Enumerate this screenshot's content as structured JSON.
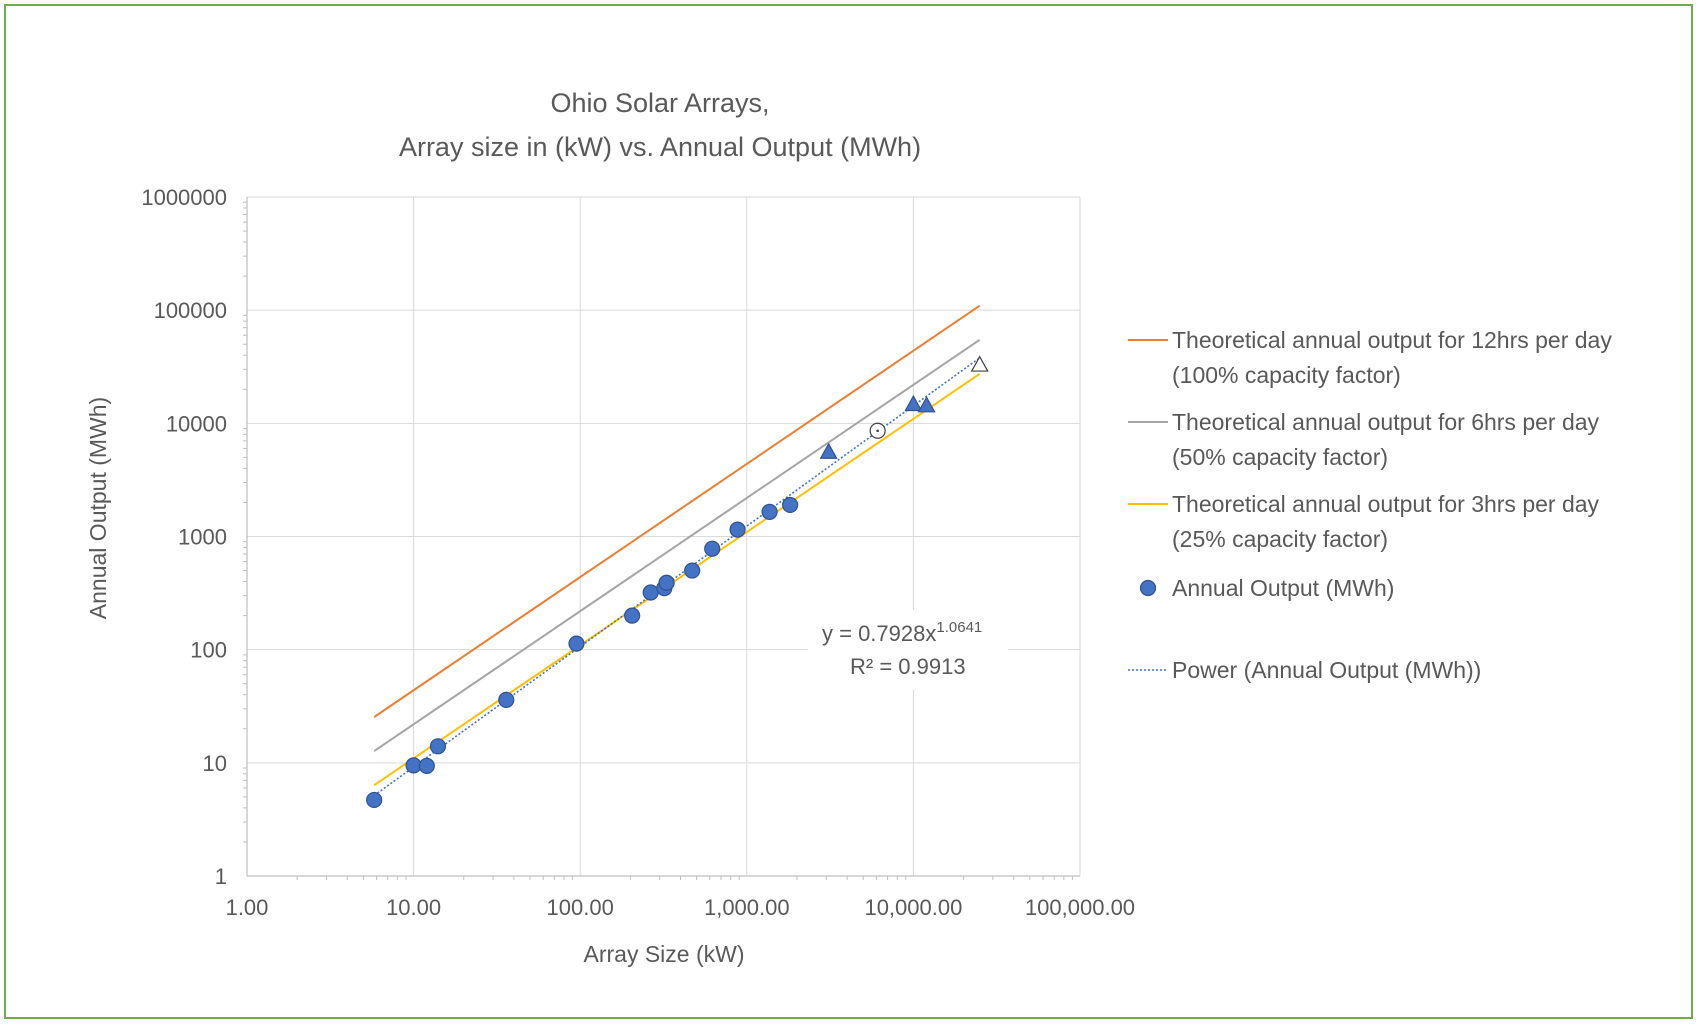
{
  "chart_data": {
    "type": "scatter",
    "title_line1": "Ohio Solar Arrays,",
    "title_line2": "Array size in (kW) vs. Annual Output  (MWh)",
    "xlabel": "Array Size (kW)",
    "ylabel": "Annual Output (MWh)",
    "x_scale": "log",
    "y_scale": "log",
    "xlim": [
      1,
      100000
    ],
    "ylim": [
      1,
      1000000
    ],
    "x_tick_values": [
      1,
      10,
      100,
      1000,
      10000,
      100000
    ],
    "x_tick_labels": [
      "1.00",
      "10.00",
      "100.00",
      "1,000.00",
      "10,000.00",
      "100,000.00"
    ],
    "y_tick_values": [
      1,
      10,
      100,
      1000,
      10000,
      100000,
      1000000
    ],
    "y_tick_labels": [
      "1",
      "10",
      "100",
      "1000",
      "10000",
      "100000",
      "1000000"
    ],
    "grid": true,
    "legend_position": "right",
    "legend": {
      "line12_a": "Theoretical annual output for 12hrs per day",
      "line12_b": "(100% capacity factor)",
      "line6_a": "Theoretical annual output for 6hrs per day",
      "line6_b": "(50% capacity factor)",
      "line3_a": "Theoretical annual output for 3hrs per day",
      "line3_b": "(25% capacity factor)",
      "points": "Annual Output  (MWh)",
      "trend": "Power (Annual Output  (MWh))"
    },
    "annotation": {
      "eq_prefix": "y = 0.7928x",
      "eq_exponent": "1.0641",
      "r2": "R² = 0.9913"
    },
    "lines": [
      {
        "name": "Theoretical annual output for 12hrs per day (100% capacity factor)",
        "color": "#ed7d31",
        "x": [
          5.8,
          25000
        ],
        "y": [
          25.4,
          109500
        ]
      },
      {
        "name": "Theoretical annual output for 6hrs per day (50% capacity factor)",
        "color": "#a5a5a5",
        "x": [
          5.8,
          25000
        ],
        "y": [
          12.7,
          54750
        ]
      },
      {
        "name": "Theoretical annual output for 3hrs per day (25% capacity factor)",
        "color": "#ffc000",
        "x": [
          5.8,
          25000
        ],
        "y": [
          6.35,
          27375
        ]
      }
    ],
    "trendline": {
      "name": "Power (Annual Output  (MWh))",
      "color": "#4472c4",
      "coefficient": 0.7928,
      "exponent": 1.0641,
      "x_range": [
        5.8,
        25000
      ]
    },
    "points": {
      "name": "Annual Output  (MWh)",
      "color": "#4472c4",
      "x": [
        5.8,
        10,
        12,
        14,
        36,
        95,
        205,
        265,
        320,
        330,
        470,
        620,
        880,
        1370,
        1820
      ],
      "y": [
        4.7,
        9.5,
        9.4,
        14,
        36,
        113,
        200,
        320,
        350,
        390,
        500,
        780,
        1150,
        1650,
        1900
      ]
    },
    "triangle_points": {
      "color": "#4472c4",
      "x": [
        3100,
        10000,
        12000
      ],
      "y": [
        5600,
        14800,
        14400
      ]
    },
    "open_triangle_points": {
      "x": [
        25000
      ],
      "y": [
        33000
      ]
    },
    "open_circle_points": {
      "x": [
        6100
      ],
      "y": [
        8600
      ]
    }
  }
}
